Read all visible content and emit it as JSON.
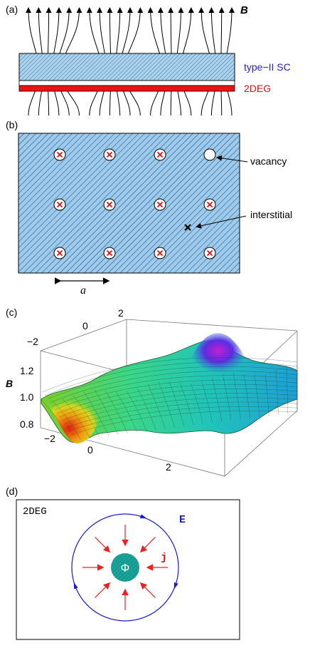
{
  "panels": {
    "a": {
      "label": "(a)",
      "field_label": "B",
      "sc_label": "type−II SC",
      "deg_label": "2DEG",
      "colors": {
        "sc": "#aad4f0",
        "deg": "#ee1111",
        "sc_text": "#2222cc",
        "deg_text": "#dd1111"
      }
    },
    "b": {
      "label": "(b)",
      "vacancy_label": "vacancy",
      "interstitial_label": "interstitial",
      "spacing_label": "a",
      "colors": {
        "background": "#9ccbee",
        "vortex_mark": "#dd1111"
      }
    },
    "c": {
      "label": "(c)",
      "z_label": "B",
      "z_ticks": [
        "0.8",
        "1.0",
        "1.2"
      ],
      "x_ticks": [
        "−2",
        "0",
        "2"
      ],
      "y_ticks": [
        "−2",
        "0",
        "2"
      ]
    },
    "d": {
      "label": "(d)",
      "title": "2DEG",
      "e_label": "E",
      "j_label": "j",
      "phi_label": "Φ",
      "colors": {
        "circle": "#1a1acc",
        "arrows": "#ee2222",
        "flux": "#1aa39a"
      }
    }
  }
}
